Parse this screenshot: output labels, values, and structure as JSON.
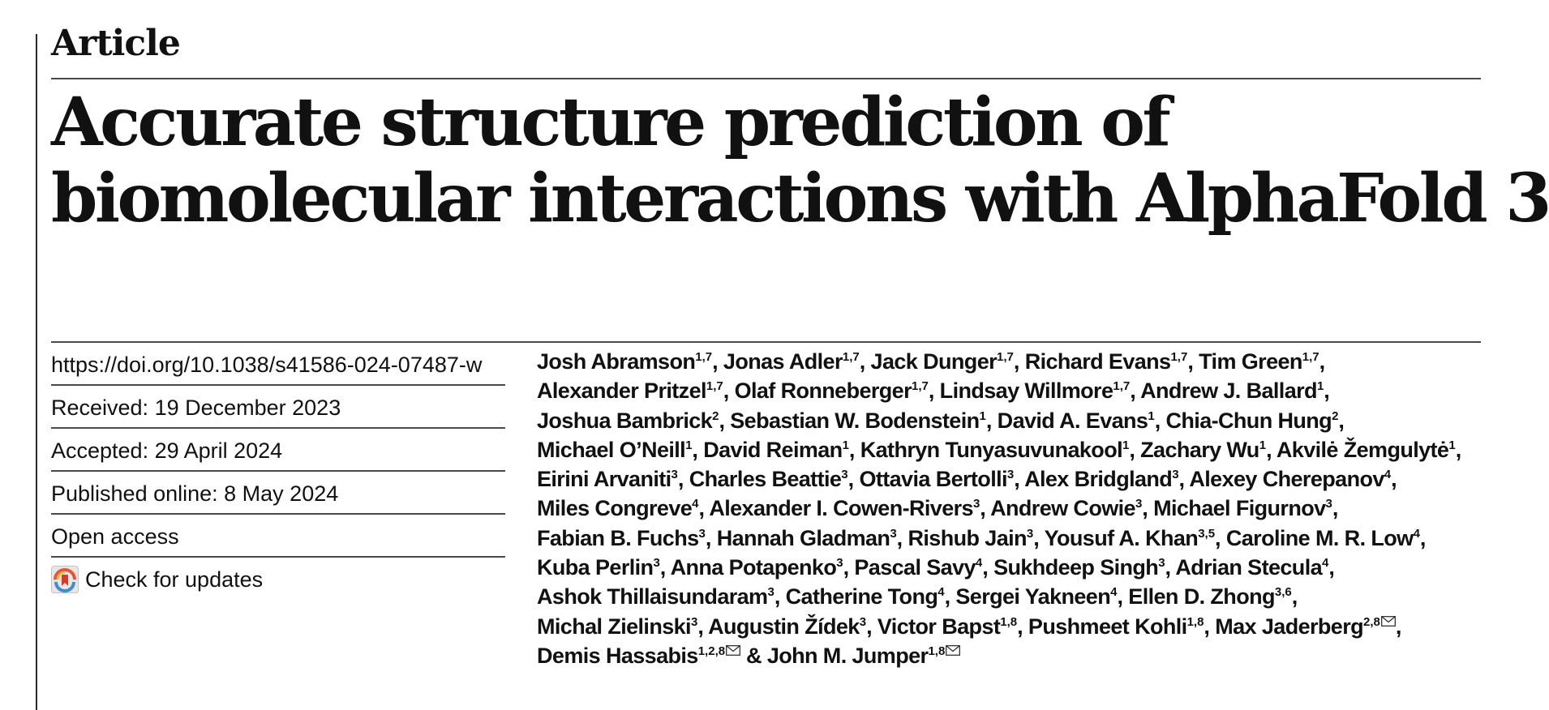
{
  "header": {
    "section_label": "Article"
  },
  "title": {
    "line1": "Accurate structure prediction of",
    "line2": "biomolecular interactions with AlphaFold 3"
  },
  "meta": {
    "doi": "https://doi.org/10.1038/s41586-024-07487-w",
    "received": "Received: 19 December 2023",
    "accepted": "Accepted: 29 April 2024",
    "published": "Published online: 8 May 2024",
    "access": "Open access",
    "check_updates": "Check for updates",
    "icon": "crossmark-icon"
  },
  "authors": [
    [
      {
        "name": "Josh Abramson",
        "sup": "1,7"
      },
      {
        "name": "Jonas Adler",
        "sup": "1,7"
      },
      {
        "name": "Jack Dunger",
        "sup": "1,7"
      },
      {
        "name": "Richard Evans",
        "sup": "1,7"
      },
      {
        "name": "Tim Green",
        "sup": "1,7"
      }
    ],
    [
      {
        "name": "Alexander Pritzel",
        "sup": "1,7"
      },
      {
        "name": "Olaf Ronneberger",
        "sup": "1,7"
      },
      {
        "name": "Lindsay Willmore",
        "sup": "1,7"
      },
      {
        "name": "Andrew J. Ballard",
        "sup": "1"
      }
    ],
    [
      {
        "name": "Joshua Bambrick",
        "sup": "2"
      },
      {
        "name": "Sebastian W. Bodenstein",
        "sup": "1"
      },
      {
        "name": "David A. Evans",
        "sup": "1"
      },
      {
        "name": "Chia-Chun Hung",
        "sup": "2"
      }
    ],
    [
      {
        "name": "Michael O’Neill",
        "sup": "1"
      },
      {
        "name": "David Reiman",
        "sup": "1"
      },
      {
        "name": "Kathryn Tunyasuvunakool",
        "sup": "1"
      },
      {
        "name": "Zachary Wu",
        "sup": "1"
      },
      {
        "name": "Akvilė Žemgulytė",
        "sup": "1"
      }
    ],
    [
      {
        "name": "Eirini Arvaniti",
        "sup": "3"
      },
      {
        "name": "Charles Beattie",
        "sup": "3"
      },
      {
        "name": "Ottavia Bertolli",
        "sup": "3"
      },
      {
        "name": "Alex Bridgland",
        "sup": "3"
      },
      {
        "name": "Alexey Cherepanov",
        "sup": "4"
      }
    ],
    [
      {
        "name": "Miles Congreve",
        "sup": "4"
      },
      {
        "name": "Alexander I. Cowen-Rivers",
        "sup": "3"
      },
      {
        "name": "Andrew Cowie",
        "sup": "3"
      },
      {
        "name": "Michael Figurnov",
        "sup": "3"
      }
    ],
    [
      {
        "name": "Fabian B. Fuchs",
        "sup": "3"
      },
      {
        "name": "Hannah Gladman",
        "sup": "3"
      },
      {
        "name": "Rishub Jain",
        "sup": "3"
      },
      {
        "name": "Yousuf A. Khan",
        "sup": "3,5"
      },
      {
        "name": "Caroline M. R. Low",
        "sup": "4"
      }
    ],
    [
      {
        "name": "Kuba Perlin",
        "sup": "3"
      },
      {
        "name": "Anna Potapenko",
        "sup": "3"
      },
      {
        "name": "Pascal Savy",
        "sup": "4"
      },
      {
        "name": "Sukhdeep Singh",
        "sup": "3"
      },
      {
        "name": "Adrian Stecula",
        "sup": "4"
      }
    ],
    [
      {
        "name": "Ashok Thillaisundaram",
        "sup": "3"
      },
      {
        "name": "Catherine Tong",
        "sup": "4"
      },
      {
        "name": "Sergei Yakneen",
        "sup": "4"
      },
      {
        "name": "Ellen D. Zhong",
        "sup": "3,6"
      }
    ],
    [
      {
        "name": "Michal Zielinski",
        "sup": "3"
      },
      {
        "name": "Augustin Žídek",
        "sup": "3"
      },
      {
        "name": "Victor Bapst",
        "sup": "1,8"
      },
      {
        "name": "Pushmeet Kohli",
        "sup": "1,8"
      },
      {
        "name": "Max Jaderberg",
        "sup": "2,8",
        "email": true
      }
    ],
    [
      {
        "name": "Demis Hassabis",
        "sup": "1,2,8",
        "email": true
      },
      {
        "name": "John M. Jumper",
        "sup": "1,8",
        "email": true
      }
    ]
  ],
  "colors": {
    "text": "#111111",
    "rule": "#4a4a4a"
  }
}
